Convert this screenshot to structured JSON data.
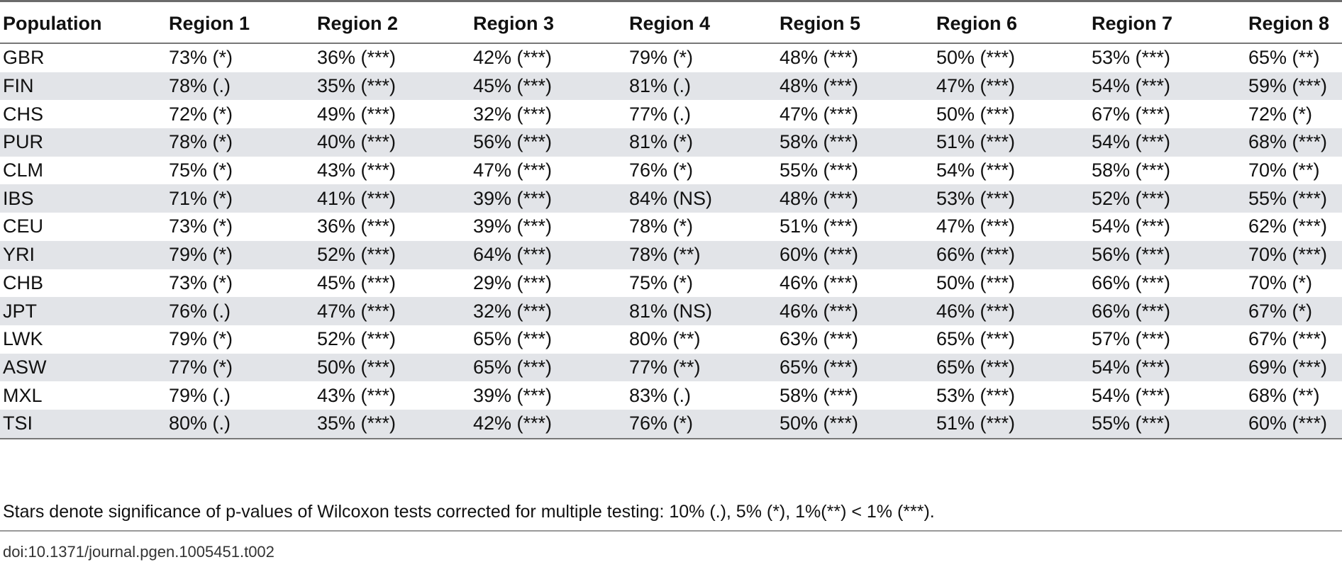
{
  "table": {
    "headers": [
      "Population",
      "Region 1",
      "Region 2",
      "Region 3",
      "Region 4",
      "Region 5",
      "Region 6",
      "Region 7",
      "Region 8"
    ],
    "rows": [
      [
        "GBR",
        "73% (*)",
        "36% (***)",
        "42% (***)",
        "79% (*)",
        "48% (***)",
        "50% (***)",
        "53% (***)",
        "65% (**)"
      ],
      [
        "FIN",
        "78% (.)",
        "35% (***)",
        "45% (***)",
        "81% (.)",
        "48% (***)",
        "47% (***)",
        "54% (***)",
        "59% (***)"
      ],
      [
        "CHS",
        "72% (*)",
        "49% (***)",
        "32% (***)",
        "77% (.)",
        "47% (***)",
        "50% (***)",
        "67% (***)",
        "72% (*)"
      ],
      [
        "PUR",
        "78% (*)",
        "40% (***)",
        "56% (***)",
        "81% (*)",
        "58% (***)",
        "51% (***)",
        "54% (***)",
        "68% (***)"
      ],
      [
        "CLM",
        "75% (*)",
        "43% (***)",
        "47% (***)",
        "76% (*)",
        "55% (***)",
        "54% (***)",
        "58% (***)",
        "70% (**)"
      ],
      [
        "IBS",
        "71% (*)",
        "41% (***)",
        "39% (***)",
        "84% (NS)",
        "48% (***)",
        "53% (***)",
        "52% (***)",
        "55% (***)"
      ],
      [
        "CEU",
        "73% (*)",
        "36% (***)",
        "39% (***)",
        "78% (*)",
        "51% (***)",
        "47% (***)",
        "54% (***)",
        "62% (***)"
      ],
      [
        "YRI",
        "79% (*)",
        "52% (***)",
        "64% (***)",
        "78% (**)",
        "60% (***)",
        "66% (***)",
        "56% (***)",
        "70% (***)"
      ],
      [
        "CHB",
        "73% (*)",
        "45% (***)",
        "29% (***)",
        "75% (*)",
        "46% (***)",
        "50% (***)",
        "66% (***)",
        "70% (*)"
      ],
      [
        "JPT",
        "76% (.)",
        "47% (***)",
        "32% (***)",
        "81% (NS)",
        "46% (***)",
        "46% (***)",
        "66% (***)",
        "67% (*)"
      ],
      [
        "LWK",
        "79% (*)",
        "52% (***)",
        "65% (***)",
        "80% (**)",
        "63% (***)",
        "65% (***)",
        "57% (***)",
        "67% (***)"
      ],
      [
        "ASW",
        "77% (*)",
        "50% (***)",
        "65% (***)",
        "77% (**)",
        "65% (***)",
        "65% (***)",
        "54% (***)",
        "69% (***)"
      ],
      [
        "MXL",
        "79% (.)",
        "43% (***)",
        "39% (***)",
        "83% (.)",
        "58% (***)",
        "53% (***)",
        "54% (***)",
        "68% (**)"
      ],
      [
        "TSI",
        "80% (.)",
        "35% (***)",
        "42% (***)",
        "76% (*)",
        "50% (***)",
        "51% (***)",
        "55% (***)",
        "60% (***)"
      ]
    ]
  },
  "footnote": "Stars denote significance of p-values of Wilcoxon tests corrected for multiple testing: 10% (.), 5% (*), 1%(**) < 1% (***).",
  "doi": "doi:10.1371/journal.pgen.1005451.t002"
}
